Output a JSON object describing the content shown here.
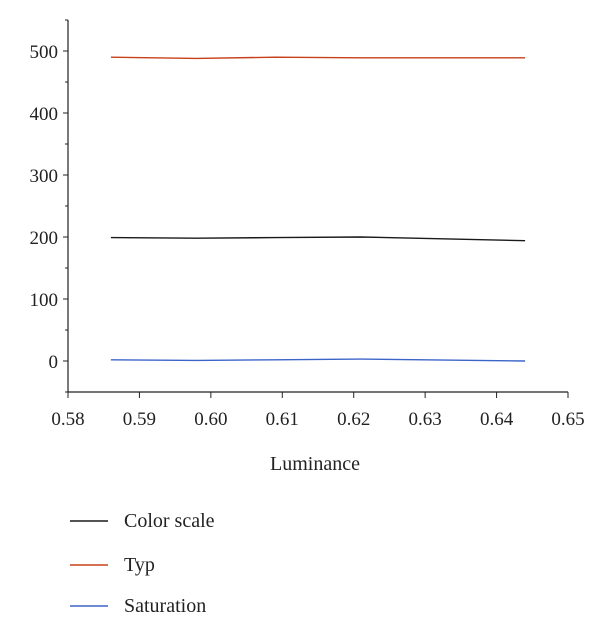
{
  "chart_data": {
    "type": "line",
    "title": "",
    "xlabel": "Luminance",
    "ylabel": "",
    "xlim": [
      0.58,
      0.65
    ],
    "ylim": [
      -50,
      550
    ],
    "x_ticks": [
      0.58,
      0.59,
      0.6,
      0.61,
      0.62,
      0.63,
      0.64,
      0.65
    ],
    "x_tick_labels": [
      "0.58",
      "0.59",
      "0.60",
      "0.61",
      "0.62",
      "0.63",
      "0.64",
      "0.65"
    ],
    "y_ticks": [
      0,
      100,
      200,
      300,
      400,
      500
    ],
    "y_tick_labels": [
      "0",
      "100",
      "200",
      "300",
      "400",
      "500"
    ],
    "grid": false,
    "legend_placement": "bottom",
    "x": [
      0.586,
      0.598,
      0.609,
      0.621,
      0.644
    ],
    "series": [
      {
        "name": "Color scale",
        "color": "#1a1a1a",
        "values": [
          199,
          198,
          199,
          200,
          194
        ]
      },
      {
        "name": "Typ",
        "color": "#c8401a",
        "values": [
          490,
          488,
          490,
          489,
          489
        ]
      },
      {
        "name": "Saturation",
        "color": "#3c64c8",
        "values": [
          2,
          1,
          2,
          3,
          0
        ]
      }
    ]
  }
}
